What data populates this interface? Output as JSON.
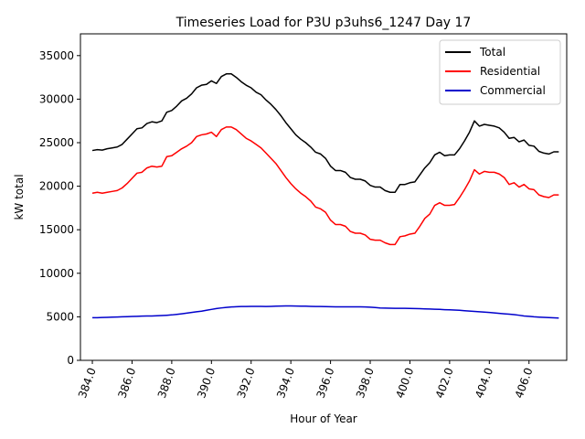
{
  "chart_data": {
    "type": "line",
    "title": "Timeseries Load for P3U p3uhs6_1247  Day 17",
    "xlabel": "Hour of Year",
    "ylabel": "kW total",
    "xlim": [
      383.4,
      407.9
    ],
    "ylim": [
      0,
      37500
    ],
    "xticks": [
      384,
      386,
      388,
      390,
      392,
      394,
      396,
      398,
      400,
      402,
      404,
      406
    ],
    "xtick_labels": [
      "384.0",
      "386.0",
      "388.0",
      "390.0",
      "392.0",
      "394.0",
      "396.0",
      "398.0",
      "400.0",
      "402.0",
      "404.0",
      "406.0"
    ],
    "yticks": [
      0,
      5000,
      10000,
      15000,
      20000,
      25000,
      30000,
      35000
    ],
    "ytick_labels": [
      "0",
      "5000",
      "10000",
      "15000",
      "20000",
      "25000",
      "30000",
      "35000"
    ],
    "legend_position": "top-right",
    "x": [
      384.0,
      384.25,
      384.5,
      384.75,
      385.0,
      385.25,
      385.5,
      385.75,
      386.0,
      386.25,
      386.5,
      386.75,
      387.0,
      387.25,
      387.5,
      387.75,
      388.0,
      388.25,
      388.5,
      388.75,
      389.0,
      389.25,
      389.5,
      389.75,
      390.0,
      390.25,
      390.5,
      390.75,
      391.0,
      391.25,
      391.5,
      391.75,
      392.0,
      392.25,
      392.5,
      392.75,
      393.0,
      393.25,
      393.5,
      393.75,
      394.0,
      394.25,
      394.5,
      394.75,
      395.0,
      395.25,
      395.5,
      395.75,
      396.0,
      396.25,
      396.5,
      396.75,
      397.0,
      397.25,
      397.5,
      397.75,
      398.0,
      398.25,
      398.5,
      398.75,
      399.0,
      399.25,
      399.5,
      399.75,
      400.0,
      400.25,
      400.5,
      400.75,
      401.0,
      401.25,
      401.5,
      401.75,
      402.0,
      402.25,
      402.5,
      402.75,
      403.0,
      403.25,
      403.5,
      403.75,
      404.0,
      404.25,
      404.5,
      404.75,
      405.0,
      405.25,
      405.5,
      405.75,
      406.0,
      406.25,
      406.5,
      406.75,
      407.0,
      407.25,
      407.5
    ],
    "series": [
      {
        "name": "Total",
        "color": "#000000",
        "values": [
          24100,
          24200,
          24150,
          24300,
          24400,
          24500,
          24800,
          25400,
          26000,
          26600,
          26700,
          27200,
          27400,
          27300,
          27500,
          28500,
          28700,
          29200,
          29800,
          30100,
          30600,
          31300,
          31600,
          31700,
          32100,
          31800,
          32600,
          32900,
          32900,
          32500,
          32000,
          31600,
          31300,
          30800,
          30500,
          29900,
          29400,
          28800,
          28100,
          27300,
          26600,
          25900,
          25400,
          25000,
          24500,
          23900,
          23700,
          23200,
          22300,
          21800,
          21800,
          21600,
          21000,
          20800,
          20800,
          20600,
          20100,
          19900,
          19900,
          19500,
          19300,
          19300,
          20200,
          20200,
          20400,
          20500,
          21300,
          22100,
          22700,
          23600,
          23900,
          23500,
          23600,
          23600,
          24300,
          25200,
          26200,
          27500,
          26900,
          27100,
          27000,
          26900,
          26700,
          26200,
          25500,
          25600,
          25100,
          25300,
          24700,
          24600,
          24000,
          23800,
          23700,
          23950,
          23950
        ],
        "data_name": "series-line-total",
        "legend_label_name": "legend-label-total"
      },
      {
        "name": "Residential",
        "color": "#ff0000",
        "values": [
          19200,
          19300,
          19200,
          19300,
          19400,
          19500,
          19800,
          20300,
          20900,
          21500,
          21600,
          22100,
          22300,
          22200,
          22300,
          23400,
          23500,
          23900,
          24300,
          24600,
          25000,
          25700,
          25900,
          26000,
          26200,
          25700,
          26500,
          26800,
          26800,
          26500,
          26000,
          25500,
          25200,
          24800,
          24400,
          23800,
          23200,
          22600,
          21800,
          21000,
          20300,
          19700,
          19200,
          18800,
          18300,
          17600,
          17400,
          17000,
          16100,
          15600,
          15600,
          15400,
          14800,
          14600,
          14600,
          14400,
          13900,
          13800,
          13800,
          13500,
          13300,
          13300,
          14200,
          14300,
          14500,
          14600,
          15400,
          16300,
          16800,
          17800,
          18100,
          17800,
          17800,
          17900,
          18700,
          19600,
          20600,
          21900,
          21400,
          21700,
          21600,
          21600,
          21400,
          21000,
          20200,
          20400,
          19900,
          20200,
          19700,
          19600,
          19000,
          18800,
          18700,
          19000,
          19000
        ],
        "data_name": "series-line-residential",
        "legend_label_name": "legend-label-residential"
      },
      {
        "name": "Commercial",
        "color": "#0000cc",
        "values": [
          4900,
          4900,
          4920,
          4940,
          4960,
          4980,
          5000,
          5020,
          5040,
          5060,
          5080,
          5100,
          5100,
          5120,
          5150,
          5180,
          5220,
          5280,
          5350,
          5420,
          5500,
          5580,
          5650,
          5750,
          5850,
          5950,
          6020,
          6080,
          6130,
          6160,
          6180,
          6190,
          6200,
          6200,
          6200,
          6190,
          6200,
          6220,
          6240,
          6250,
          6250,
          6240,
          6230,
          6220,
          6200,
          6190,
          6180,
          6170,
          6160,
          6150,
          6150,
          6140,
          6140,
          6140,
          6140,
          6130,
          6100,
          6060,
          6020,
          6000,
          5990,
          5980,
          5980,
          5970,
          5960,
          5950,
          5930,
          5910,
          5890,
          5870,
          5850,
          5820,
          5800,
          5780,
          5750,
          5700,
          5660,
          5620,
          5580,
          5540,
          5500,
          5450,
          5400,
          5350,
          5300,
          5250,
          5180,
          5100,
          5050,
          5000,
          4970,
          4940,
          4910,
          4880,
          4860
        ],
        "data_name": "series-line-commercial",
        "legend_label_name": "legend-label-commercial"
      }
    ]
  }
}
